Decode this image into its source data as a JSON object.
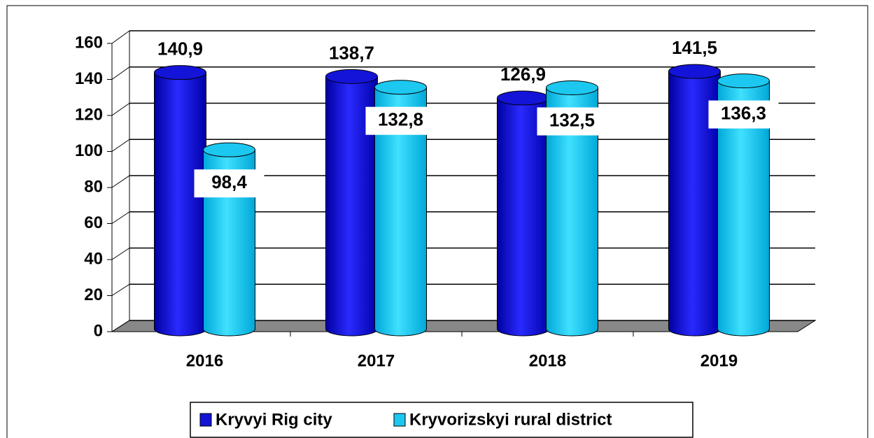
{
  "chart_data": {
    "type": "bar3d",
    "categories": [
      "2016",
      "2017",
      "2018",
      "2019"
    ],
    "series": [
      {
        "name": "Kryvyi Rig city",
        "color": "#1414d8",
        "values": [
          140.9,
          138.7,
          126.9,
          141.5
        ],
        "value_labels": [
          "140,9",
          "138,7",
          "126,9",
          "141,5"
        ]
      },
      {
        "name": "Kryvorizskyi rural district",
        "color": "#1cc8f0",
        "values": [
          98.4,
          132.8,
          132.5,
          136.3
        ],
        "value_labels": [
          "98,4",
          "132,8",
          "132,5",
          "136,3"
        ]
      }
    ],
    "ylim": [
      0,
      160
    ],
    "yticks": [
      0,
      20,
      40,
      60,
      80,
      100,
      120,
      140,
      160
    ],
    "grid": true,
    "legend": "bottom"
  }
}
